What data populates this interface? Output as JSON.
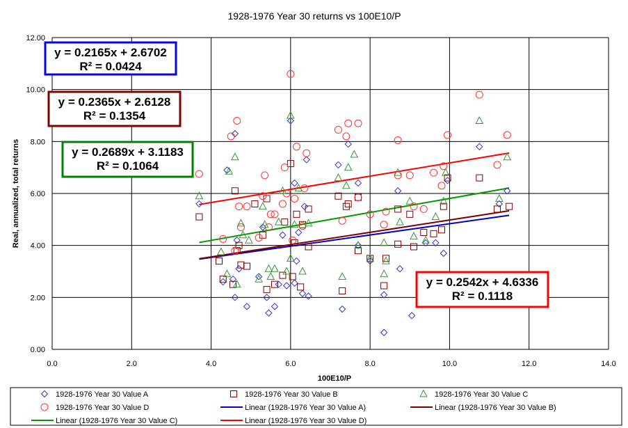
{
  "chart_data": {
    "type": "scatter",
    "title": "1928-1976 Year 30 returns vs 100E10/P",
    "xlabel": "100E10/P",
    "ylabel": "Real, annualized, total returns",
    "xlim": [
      0,
      14
    ],
    "ylim": [
      0,
      12
    ],
    "x_ticks": [
      "0.0",
      "2.0",
      "4.0",
      "6.0",
      "8.0",
      "10.0",
      "12.0",
      "14.0"
    ],
    "y_ticks": [
      "0.00",
      "2.00",
      "4.00",
      "6.00",
      "8.00",
      "10.00",
      "12.00"
    ],
    "grid": true,
    "legend_position": "bottom",
    "series": [
      {
        "name": "1928-1976 Year 30 Value A",
        "marker": "diamond",
        "color": "#3333cc",
        "points": [
          [
            3.7,
            5.6
          ],
          [
            4.3,
            2.6
          ],
          [
            4.4,
            6.9
          ],
          [
            4.55,
            2.7
          ],
          [
            4.6,
            2.0
          ],
          [
            4.6,
            8.3
          ],
          [
            4.65,
            4.2
          ],
          [
            4.7,
            3.1
          ],
          [
            4.9,
            1.65
          ],
          [
            5.2,
            2.8
          ],
          [
            5.3,
            4.7
          ],
          [
            5.4,
            2.0
          ],
          [
            5.45,
            1.4
          ],
          [
            5.6,
            1.65
          ],
          [
            5.7,
            2.5
          ],
          [
            5.8,
            4.4
          ],
          [
            5.9,
            2.45
          ],
          [
            6.0,
            8.8
          ],
          [
            6.1,
            2.55
          ],
          [
            6.1,
            6.4
          ],
          [
            6.15,
            3.4
          ],
          [
            6.2,
            4.5
          ],
          [
            6.3,
            2.15
          ],
          [
            6.35,
            5.5
          ],
          [
            6.4,
            7.3
          ],
          [
            6.45,
            2.05
          ],
          [
            7.2,
            7.1
          ],
          [
            7.3,
            1.55
          ],
          [
            7.45,
            7.9
          ],
          [
            7.7,
            6.4
          ],
          [
            7.7,
            4.0
          ],
          [
            8.0,
            3.4
          ],
          [
            8.35,
            2.1
          ],
          [
            8.35,
            0.65
          ],
          [
            8.7,
            6.1
          ],
          [
            8.75,
            3.1
          ],
          [
            9.05,
            1.3
          ],
          [
            9.4,
            4.1
          ],
          [
            9.65,
            4.1
          ],
          [
            9.85,
            3.7
          ],
          [
            9.95,
            6.5
          ],
          [
            10.75,
            7.8
          ],
          [
            11.25,
            5.6
          ],
          [
            11.45,
            6.1
          ]
        ]
      },
      {
        "name": "1928-1976 Year 30 Value B",
        "marker": "square",
        "color": "#800000",
        "points": [
          [
            3.7,
            5.1
          ],
          [
            4.2,
            3.4
          ],
          [
            4.3,
            2.7
          ],
          [
            4.55,
            2.5
          ],
          [
            4.6,
            6.1
          ],
          [
            4.65,
            3.8
          ],
          [
            4.7,
            4.0
          ],
          [
            4.75,
            3.25
          ],
          [
            4.9,
            3.2
          ],
          [
            5.1,
            5.6
          ],
          [
            5.3,
            4.4
          ],
          [
            5.4,
            2.3
          ],
          [
            5.4,
            5.8
          ],
          [
            5.6,
            2.5
          ],
          [
            5.8,
            2.85
          ],
          [
            5.85,
            4.9
          ],
          [
            6.0,
            7.15
          ],
          [
            6.05,
            2.8
          ],
          [
            6.1,
            4.1
          ],
          [
            6.15,
            5.2
          ],
          [
            6.25,
            2.4
          ],
          [
            6.3,
            4.8
          ],
          [
            6.45,
            3.95
          ],
          [
            6.45,
            5.4
          ],
          [
            7.2,
            5.9
          ],
          [
            7.3,
            2.25
          ],
          [
            7.4,
            5.5
          ],
          [
            7.45,
            5.6
          ],
          [
            7.7,
            3.8
          ],
          [
            7.7,
            5.85
          ],
          [
            8.0,
            3.5
          ],
          [
            8.35,
            2.45
          ],
          [
            8.4,
            3.5
          ],
          [
            8.7,
            4.05
          ],
          [
            8.7,
            5.4
          ],
          [
            9.0,
            5.2
          ],
          [
            9.1,
            3.95
          ],
          [
            9.35,
            4.5
          ],
          [
            9.6,
            4.45
          ],
          [
            9.8,
            4.6
          ],
          [
            9.85,
            5.5
          ],
          [
            9.95,
            6.6
          ],
          [
            10.75,
            6.6
          ],
          [
            11.2,
            5.4
          ],
          [
            11.5,
            5.5
          ]
        ]
      },
      {
        "name": "1928-1976 Year 30 Value C",
        "marker": "triangle",
        "color": "#339933",
        "points": [
          [
            3.7,
            5.9
          ],
          [
            4.25,
            3.75
          ],
          [
            4.4,
            2.9
          ],
          [
            4.45,
            6.85
          ],
          [
            4.6,
            7.4
          ],
          [
            4.65,
            2.5
          ],
          [
            4.75,
            4.85
          ],
          [
            4.8,
            4.4
          ],
          [
            4.95,
            4.2
          ],
          [
            5.2,
            2.7
          ],
          [
            5.3,
            5.5
          ],
          [
            5.35,
            4.8
          ],
          [
            5.45,
            3.1
          ],
          [
            5.5,
            2.8
          ],
          [
            5.6,
            3.1
          ],
          [
            5.7,
            4.9
          ],
          [
            5.8,
            6.1
          ],
          [
            5.9,
            3.0
          ],
          [
            6.0,
            9.0
          ],
          [
            6.0,
            3.5
          ],
          [
            6.1,
            4.8
          ],
          [
            6.2,
            6.2
          ],
          [
            6.3,
            3.0
          ],
          [
            6.45,
            4.85
          ],
          [
            7.2,
            6.6
          ],
          [
            7.3,
            2.8
          ],
          [
            7.4,
            6.3
          ],
          [
            7.45,
            7.0
          ],
          [
            7.6,
            7.5
          ],
          [
            7.7,
            4.0
          ],
          [
            8.0,
            3.5
          ],
          [
            8.35,
            4.1
          ],
          [
            8.35,
            2.9
          ],
          [
            8.4,
            3.4
          ],
          [
            8.7,
            6.8
          ],
          [
            8.75,
            4.9
          ],
          [
            9.0,
            5.7
          ],
          [
            9.1,
            4.35
          ],
          [
            9.4,
            4.2
          ],
          [
            9.65,
            5.1
          ],
          [
            9.85,
            5.7
          ],
          [
            9.9,
            6.8
          ],
          [
            10.75,
            8.8
          ],
          [
            11.25,
            5.8
          ],
          [
            11.45,
            7.4
          ]
        ]
      },
      {
        "name": "1928-1976 Year 30 Value D",
        "marker": "circle",
        "color": "#ff3333",
        "points": [
          [
            3.7,
            6.75
          ],
          [
            4.3,
            4.25
          ],
          [
            4.5,
            8.2
          ],
          [
            4.6,
            3.8
          ],
          [
            4.65,
            8.8
          ],
          [
            4.7,
            5.5
          ],
          [
            4.75,
            4.7
          ],
          [
            4.9,
            5.5
          ],
          [
            5.2,
            4.3
          ],
          [
            5.3,
            5.9
          ],
          [
            5.35,
            6.7
          ],
          [
            5.45,
            4.7
          ],
          [
            5.5,
            5.2
          ],
          [
            5.6,
            5.2
          ],
          [
            5.8,
            5.6
          ],
          [
            5.85,
            7.0
          ],
          [
            5.9,
            6.0
          ],
          [
            6.0,
            10.6
          ],
          [
            6.05,
            4.2
          ],
          [
            6.1,
            5.8
          ],
          [
            6.15,
            7.8
          ],
          [
            6.3,
            4.75
          ],
          [
            6.35,
            6.2
          ],
          [
            6.4,
            7.55
          ],
          [
            7.2,
            8.45
          ],
          [
            7.3,
            4.95
          ],
          [
            7.4,
            8.2
          ],
          [
            7.45,
            8.7
          ],
          [
            7.7,
            8.7
          ],
          [
            7.7,
            5.85
          ],
          [
            8.0,
            5.2
          ],
          [
            8.35,
            4.8
          ],
          [
            8.4,
            5.3
          ],
          [
            8.7,
            8.05
          ],
          [
            8.7,
            6.7
          ],
          [
            9.0,
            6.7
          ],
          [
            9.1,
            5.5
          ],
          [
            9.35,
            5.4
          ],
          [
            9.6,
            6.8
          ],
          [
            9.8,
            6.3
          ],
          [
            9.85,
            7.05
          ],
          [
            9.95,
            8.25
          ],
          [
            10.75,
            9.8
          ],
          [
            11.2,
            7.1
          ],
          [
            11.45,
            8.25
          ]
        ]
      }
    ],
    "trendlines": [
      {
        "name": "Linear (1928-1976 Year 30 Value A)",
        "color": "#0000cc",
        "x_range": [
          3.7,
          11.5
        ],
        "equation": "y = 0.2165x + 2.6702",
        "r2": "R² = 0.0424",
        "box_color": "#0000ff"
      },
      {
        "name": "Linear (1928-1976 Year 30 Value B)",
        "color": "#800000",
        "x_range": [
          3.7,
          11.5
        ],
        "equation": "y = 0.2365x + 2.6128",
        "r2": "R² = 0.1354",
        "box_color": "#800000"
      },
      {
        "name": "Linear (1928-1976 Year 30 Value C)",
        "color": "#009900",
        "x_range": [
          3.7,
          11.5
        ],
        "equation": "y = 0.2689x + 3.1183",
        "r2": "R² = 0.1064",
        "box_color": "#008000"
      },
      {
        "name": "Linear (1928-1976 Year 30 Value D)",
        "color": "#ff0000",
        "x_range": [
          3.7,
          11.5
        ],
        "equation": "y = 0.2542x + 4.6336",
        "r2": "R² = 0.1118",
        "box_color": "#ff0000"
      }
    ]
  }
}
